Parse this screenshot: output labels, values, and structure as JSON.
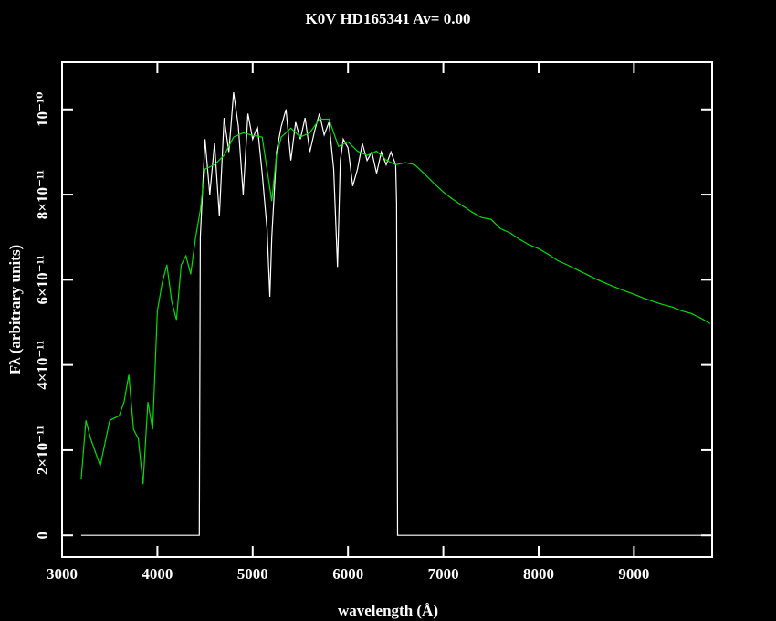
{
  "chart_data": {
    "type": "line",
    "title": "K0V  HD165341       Av=  0.00",
    "x_label": "wavelength (Å)",
    "y_label": "Fλ (arbitrary units)",
    "xlim": [
      3000,
      9820
    ],
    "ylim": [
      -5.1e-12,
      1.111e-10
    ],
    "xticks": [
      3000,
      4000,
      5000,
      6000,
      7000,
      8000,
      9000
    ],
    "yticks": [
      0,
      {
        "value": 2e-11,
        "label": "2×10⁻¹¹"
      },
      {
        "value": 4e-11,
        "label": "4×10⁻¹¹"
      },
      {
        "value": 6e-11,
        "label": "6×10⁻¹¹"
      },
      {
        "value": 8e-11,
        "label": "8×10⁻¹¹"
      },
      {
        "value": 1e-10,
        "label": "10⁻¹⁰"
      }
    ],
    "series": [
      {
        "color": "#ffffff",
        "x": [
          3200,
          4440,
          4450,
          4500,
          4550,
          4600,
          4650,
          4700,
          4750,
          4800,
          4850,
          4900,
          4950,
          5000,
          5050,
          5100,
          5150,
          5180,
          5200,
          5250,
          5300,
          5350,
          5400,
          5450,
          5500,
          5550,
          5600,
          5650,
          5700,
          5750,
          5800,
          5850,
          5890,
          5920,
          5950,
          6000,
          6050,
          6100,
          6150,
          6200,
          6250,
          6300,
          6350,
          6400,
          6450,
          6500,
          6510,
          6520,
          9800
        ],
        "values": [
          0,
          0,
          7e-11,
          9.3e-11,
          8e-11,
          9.2e-11,
          7.5e-11,
          9.8e-11,
          9e-11,
          1.04e-10,
          9.6e-11,
          8e-11,
          9.9e-11,
          9.3e-11,
          9.6e-11,
          8.5e-11,
          7.2e-11,
          5.6e-11,
          7e-11,
          9e-11,
          9.6e-11,
          1e-10,
          8.8e-11,
          9.7e-11,
          9.3e-11,
          9.8e-11,
          9e-11,
          9.5e-11,
          9.9e-11,
          9.4e-11,
          9.7e-11,
          8.6e-11,
          6.3e-11,
          8.8e-11,
          9.3e-11,
          9.1e-11,
          8.2e-11,
          8.6e-11,
          9.2e-11,
          8.8e-11,
          9e-11,
          8.5e-11,
          9e-11,
          8.7e-11,
          9e-11,
          8.7e-11,
          7.8e-11,
          0,
          0
        ]
      },
      {
        "color": "#00e000",
        "x": [
          3200,
          3250,
          3300,
          3400,
          3500,
          3600,
          3650,
          3700,
          3750,
          3800,
          3850,
          3900,
          3950,
          4000,
          4050,
          4100,
          4150,
          4200,
          4250,
          4300,
          4350,
          4400,
          4450,
          4500,
          4600,
          4700,
          4800,
          4900,
          5000,
          5100,
          5200,
          5250,
          5300,
          5400,
          5500,
          5600,
          5700,
          5800,
          5900,
          6000,
          6100,
          6200,
          6300,
          6400,
          6500,
          6600,
          6700,
          6800,
          6900,
          7000,
          7100,
          7200,
          7300,
          7400,
          7500,
          7600,
          7700,
          7800,
          7900,
          8000,
          8100,
          8200,
          8300,
          8400,
          8500,
          8600,
          8700,
          8800,
          8900,
          9000,
          9100,
          9200,
          9300,
          9400,
          9500,
          9600,
          9700,
          9800
        ],
        "values": [
          1.31e-11,
          2.7e-11,
          2.27e-11,
          1.63e-11,
          2.7e-11,
          2.81e-11,
          3.13e-11,
          3.77e-11,
          2.49e-11,
          2.27e-11,
          1.2e-11,
          3.13e-11,
          2.49e-11,
          5.27e-11,
          5.92e-11,
          6.35e-11,
          5.49e-11,
          5.06e-11,
          6.35e-11,
          6.56e-11,
          6.13e-11,
          6.99e-11,
          7.63e-11,
          8.6e-11,
          8.7e-11,
          8.92e-11,
          9.35e-11,
          9.45e-11,
          9.39e-11,
          9.35e-11,
          7.85e-11,
          8.92e-11,
          9.35e-11,
          9.56e-11,
          9.35e-11,
          9.45e-11,
          9.77e-11,
          9.77e-11,
          9.13e-11,
          9.24e-11,
          9.02e-11,
          8.92e-11,
          9.02e-11,
          8.81e-11,
          8.7e-11,
          8.75e-11,
          8.7e-11,
          8.49e-11,
          8.27e-11,
          8.06e-11,
          7.89e-11,
          7.74e-11,
          7.59e-11,
          7.46e-11,
          7.42e-11,
          7.2e-11,
          7.1e-11,
          6.95e-11,
          6.82e-11,
          6.73e-11,
          6.6e-11,
          6.45e-11,
          6.35e-11,
          6.24e-11,
          6.13e-11,
          6.02e-11,
          5.92e-11,
          5.83e-11,
          5.74e-11,
          5.66e-11,
          5.57e-11,
          5.49e-11,
          5.42e-11,
          5.36e-11,
          5.27e-11,
          5.21e-11,
          5.1e-11,
          4.97e-11
        ]
      }
    ]
  }
}
